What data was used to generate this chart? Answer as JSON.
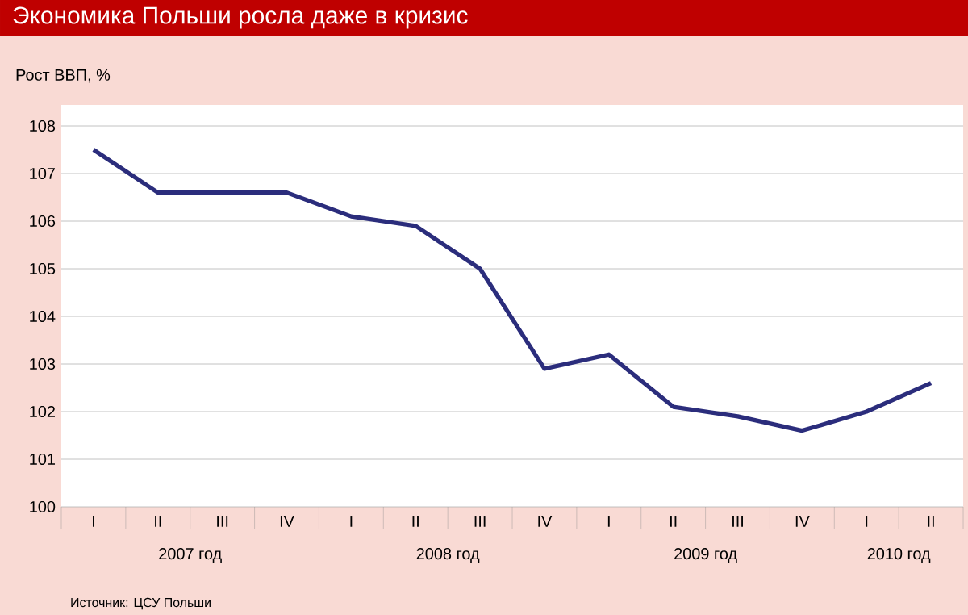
{
  "chart_data": {
    "type": "line",
    "title": "Экономика Польши росла даже в кризис",
    "ylabel": "Рост ВВП, %",
    "categories": [
      "I",
      "II",
      "III",
      "IV",
      "I",
      "II",
      "III",
      "IV",
      "I",
      "II",
      "III",
      "IV",
      "I",
      "II"
    ],
    "values": [
      107.5,
      106.6,
      106.6,
      106.6,
      106.1,
      105.9,
      105.0,
      102.9,
      103.2,
      102.1,
      101.9,
      101.6,
      102.0,
      102.6
    ],
    "color": "#2b2d7c",
    "ylim": [
      100,
      108
    ],
    "yticks": [
      100,
      101,
      102,
      103,
      104,
      105,
      106,
      107,
      108
    ],
    "grid": "y",
    "marker": "none",
    "line_style": "solid",
    "annotations": [
      "2007 год",
      "2008 год",
      "2009 год",
      "2010 год",
      "Источник: ЦСУ Польши"
    ]
  }
}
